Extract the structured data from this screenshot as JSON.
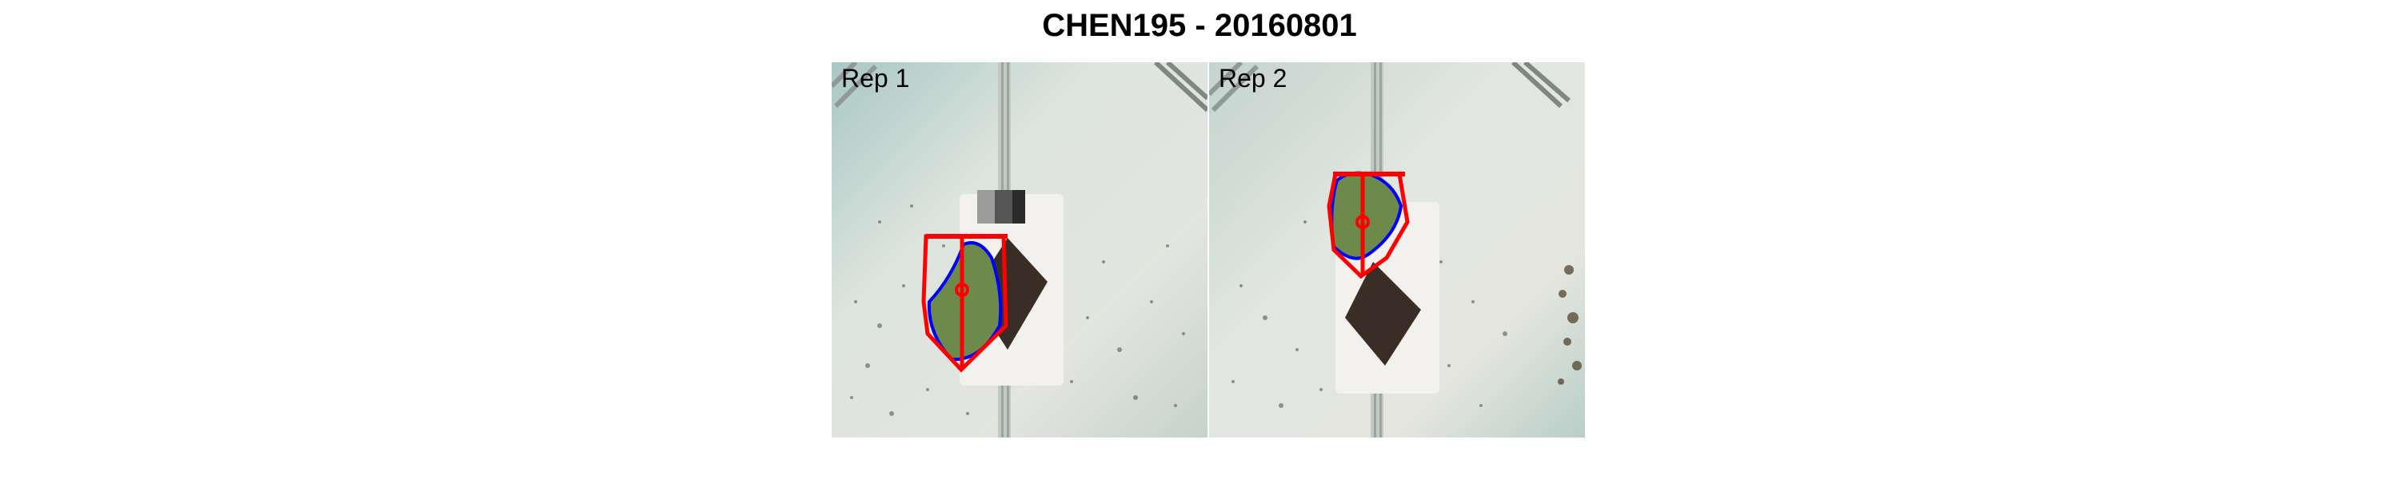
{
  "title": "CHEN195 - 20160801",
  "panels": [
    {
      "label": "Rep 1"
    },
    {
      "label": "Rep 2"
    }
  ],
  "colors": {
    "background_tray": "#d3dcd6",
    "hull_outline": "#ff0000",
    "plant_contour": "#0000ff",
    "leaf_fill": "#6e8a4a",
    "soil": "#3a2d25"
  }
}
